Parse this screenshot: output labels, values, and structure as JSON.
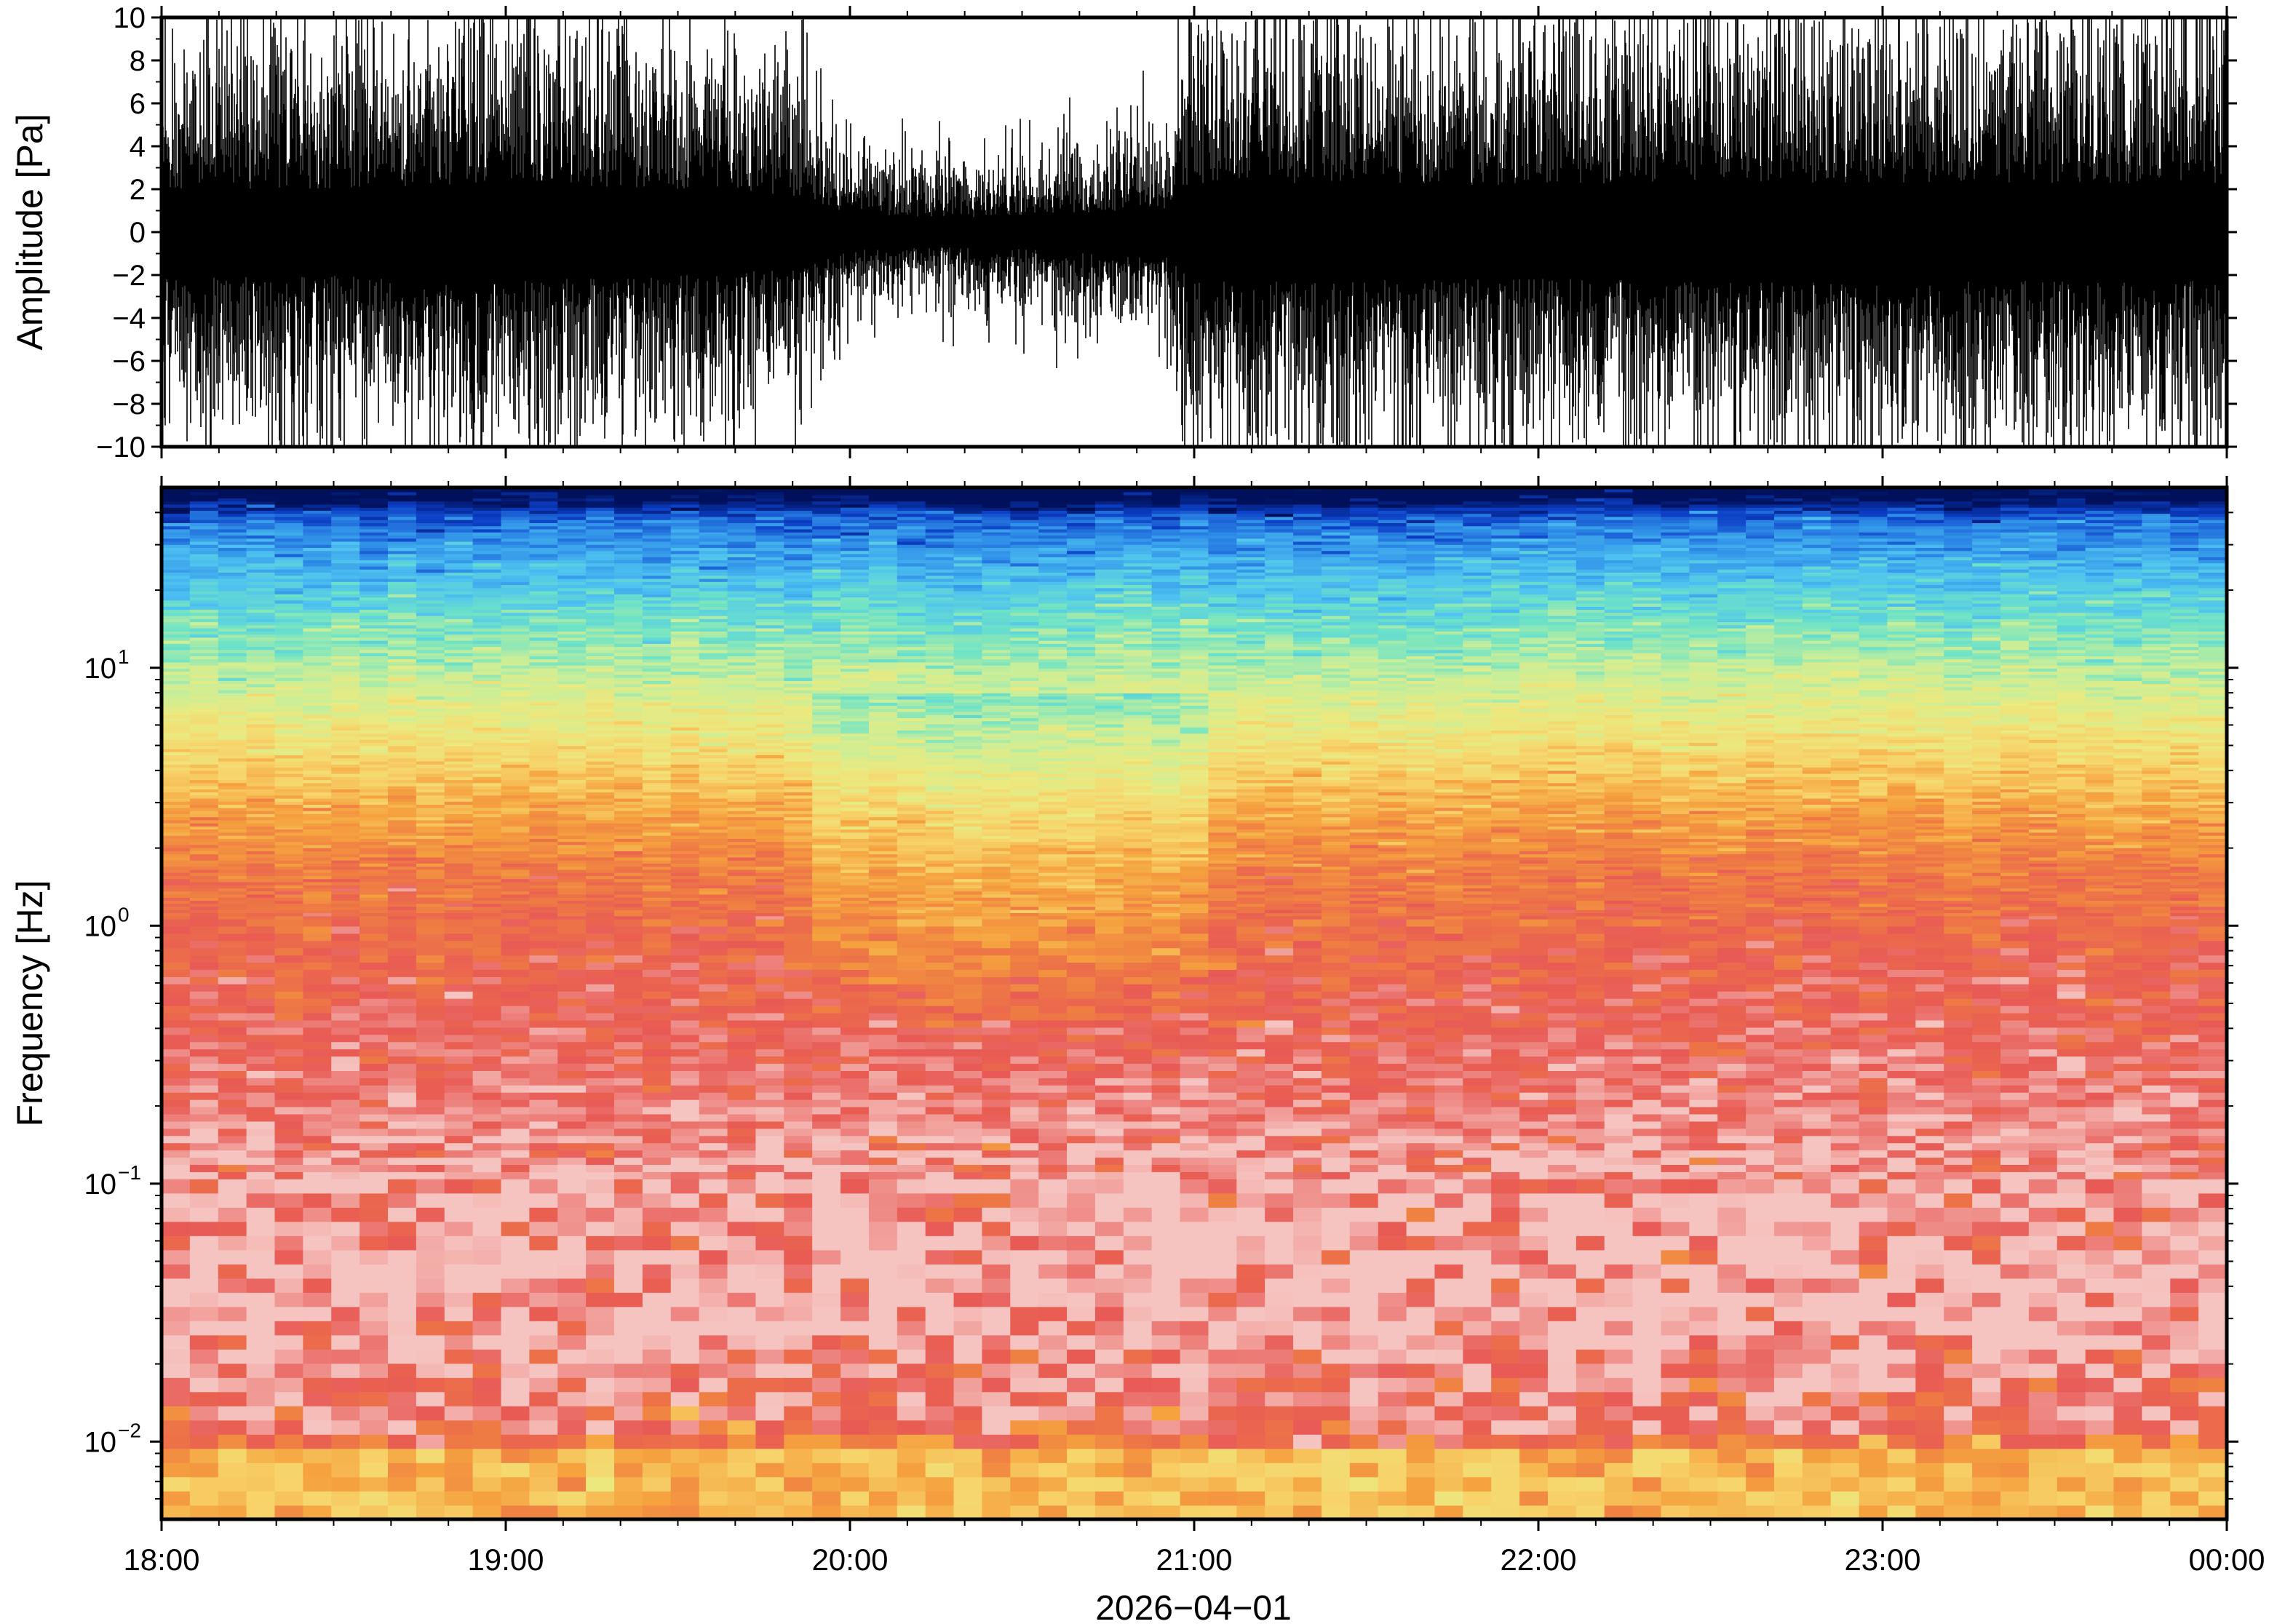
{
  "chart_data": [
    {
      "type": "line",
      "panel": "waveform",
      "ylabel": "Amplitude [Pa]",
      "ylim": [
        -10,
        10
      ],
      "yticks": [
        -10,
        -8,
        -6,
        -4,
        -2,
        0,
        2,
        4,
        6,
        8,
        10
      ],
      "ytick_labels": [
        "−10",
        "−8",
        "−6",
        "−4",
        "−2",
        "0",
        "2",
        "4",
        "6",
        "8",
        "10"
      ],
      "xlim": [
        "18:00",
        "00:00"
      ],
      "grid": false,
      "envelope": {
        "x": [
          "18:00",
          "18:30",
          "19:00",
          "19:30",
          "19:50",
          "20:00",
          "20:20",
          "20:40",
          "20:55",
          "21:00",
          "21:30",
          "22:00",
          "22:30",
          "23:00",
          "23:30",
          "00:00"
        ],
        "typical_peak_pa": [
          4.5,
          4.5,
          5.0,
          4.5,
          3.8,
          1.8,
          1.5,
          2.0,
          2.4,
          5.0,
          5.0,
          4.8,
          5.2,
          5.0,
          5.0,
          5.0
        ],
        "max_spike_pa": [
          10,
          10,
          10,
          10,
          9,
          5,
          6,
          7,
          7,
          10,
          10,
          10,
          10,
          10,
          10,
          10
        ]
      }
    },
    {
      "type": "heatmap",
      "panel": "spectrogram",
      "ylabel": "Frequency [Hz]",
      "yscale": "log",
      "ylim": [
        0.005,
        50
      ],
      "ytick_labels": [
        {
          "base": "10",
          "exp": "−2",
          "value": 0.01
        },
        {
          "base": "10",
          "exp": "−1",
          "value": 0.1
        },
        {
          "base": "10",
          "exp": "0",
          "value": 1
        },
        {
          "base": "10",
          "exp": "1",
          "value": 10
        }
      ],
      "xlabel": "2026−04−01",
      "xticks": [
        "18:00",
        "19:00",
        "20:00",
        "21:00",
        "22:00",
        "23:00",
        "00:00"
      ],
      "colormap": [
        "#f6c4c0",
        "#e85a55",
        "#ee7a44",
        "#f5a23f",
        "#f7d36a",
        "#eaea80",
        "#c8ee9a",
        "#6ee3c6",
        "#4ec2f0",
        "#2f8ee8",
        "#0c3fc6",
        "#00105a"
      ],
      "bands": [
        {
          "hz": 40,
          "note": "top edge dark blue"
        },
        {
          "hz": 20,
          "note": "blue"
        },
        {
          "hz": 8,
          "note": "cyan to green"
        },
        {
          "hz": 4,
          "note": "yellow to orange"
        },
        {
          "hz": 1,
          "note": "red, orange between 20:00 and 21:00"
        },
        {
          "hz": 0.1,
          "note": "pink and red"
        },
        {
          "hz": 0.025,
          "note": "red band"
        },
        {
          "hz": 0.007,
          "note": "orange and yellow"
        }
      ]
    }
  ],
  "colors": {
    "frame": "#000000",
    "trace": "#000000",
    "background": "#ffffff"
  }
}
